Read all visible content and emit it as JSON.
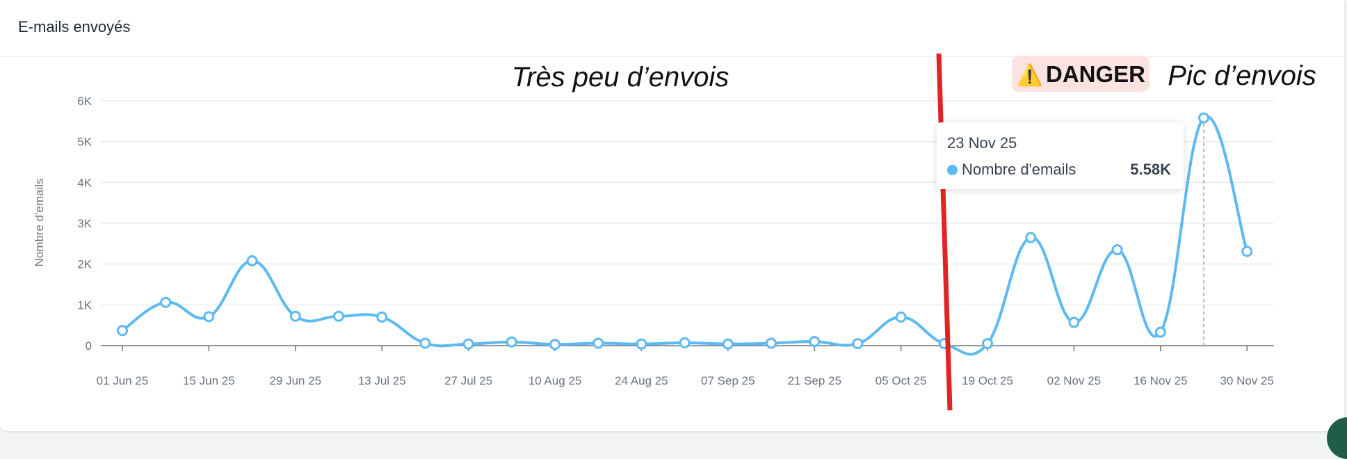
{
  "card": {
    "title": "E-mails envoyés"
  },
  "annotations": {
    "left_note": "Très peu d’envois",
    "danger": {
      "icon": "⚠️",
      "label": "DANGER",
      "bg_color": "#fbe3e1"
    },
    "right_note": "Pic d’envois",
    "divider_color": "#e02424"
  },
  "tooltip": {
    "date": "23 Nov 25",
    "series": "Nombre d'emails",
    "value": "5.58K"
  },
  "colors": {
    "line": "#5db9f2",
    "grid": "#e5e7eb",
    "axis": "#6b7280"
  },
  "chart_data": {
    "type": "line",
    "ylabel": "Nombre d'emails",
    "ylim": [
      0,
      6000
    ],
    "yticks": [
      0,
      1000,
      2000,
      3000,
      4000,
      5000,
      6000
    ],
    "ytick_labels": [
      "0",
      "1K",
      "2K",
      "3K",
      "4K",
      "5K",
      "6K"
    ],
    "x_tick_labels": [
      "01 Jun 25",
      "15 Jun 25",
      "29 Jun 25",
      "13 Jul 25",
      "27 Jul 25",
      "10 Aug 25",
      "24 Aug 25",
      "07 Sep 25",
      "21 Sep 25",
      "05 Oct 25",
      "19 Oct 25",
      "02 Nov 25",
      "16 Nov 25",
      "30 Nov 25"
    ],
    "x": [
      "01 Jun 25",
      "08 Jun 25",
      "15 Jun 25",
      "22 Jun 25",
      "29 Jun 25",
      "06 Jul 25",
      "13 Jul 25",
      "20 Jul 25",
      "27 Jul 25",
      "03 Aug 25",
      "10 Aug 25",
      "17 Aug 25",
      "24 Aug 25",
      "31 Aug 25",
      "07 Sep 25",
      "14 Sep 25",
      "21 Sep 25",
      "28 Sep 25",
      "05 Oct 25",
      "12 Oct 25",
      "19 Oct 25",
      "26 Oct 25",
      "02 Nov 25",
      "09 Nov 25",
      "16 Nov 25",
      "23 Nov 25",
      "30 Nov 25"
    ],
    "series": [
      {
        "name": "Nombre d'emails",
        "values": [
          370,
          1060,
          710,
          2080,
          720,
          720,
          700,
          60,
          40,
          90,
          30,
          60,
          40,
          70,
          40,
          60,
          100,
          50,
          700,
          50,
          50,
          2650,
          570,
          2350,
          330,
          5580,
          2310
        ]
      }
    ],
    "highlighted_point": "23 Nov 25",
    "grid": true
  }
}
